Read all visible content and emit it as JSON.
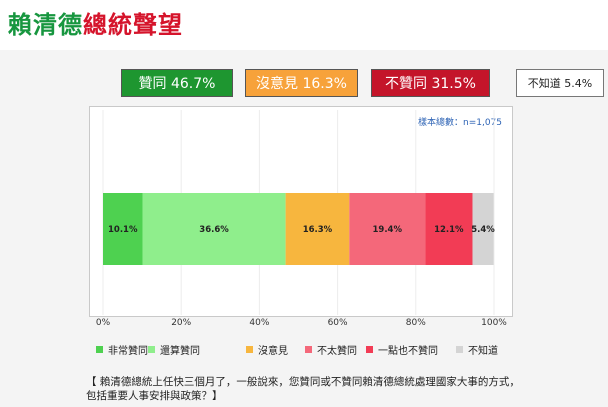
{
  "header": {
    "title_part1": "賴清德",
    "title_part2": "總統聲望"
  },
  "summary": {
    "approve": "贊同 46.7%",
    "neutral": "沒意見 16.3%",
    "disapprove": "不贊同 31.5%",
    "unknown": "不知道 5.4%"
  },
  "sample_size": "樣本總數：n=1,075",
  "question": "【 賴清德總統上任快三個月了，一般說來，您贊同或不贊同賴清德總統處理國家大事的方式，包括重要人事安排與政策？】",
  "chart_data": {
    "type": "bar",
    "orientation": "horizontal",
    "stacked": true,
    "xlim": [
      0,
      100
    ],
    "ticks": [
      "0%",
      "20%",
      "40%",
      "60%",
      "80%",
      "100%"
    ],
    "tick_values": [
      0,
      20,
      40,
      60,
      80,
      100
    ],
    "grid": true,
    "legend_position": "bottom",
    "series": [
      {
        "name": "非常贊同",
        "value": 10.1,
        "label": "10.1%",
        "color": "#4ed150"
      },
      {
        "name": "還算贊同",
        "value": 36.6,
        "label": "36.6%",
        "color": "#8fee8c"
      },
      {
        "name": "沒意見",
        "value": 16.3,
        "label": "16.3%",
        "color": "#f7b63e"
      },
      {
        "name": "不太贊同",
        "value": 19.4,
        "label": "19.4%",
        "color": "#f4687a"
      },
      {
        "name": "一點也不贊同",
        "value": 12.1,
        "label": "12.1%",
        "color": "#f23c55"
      },
      {
        "name": "不知道",
        "value": 5.4,
        "label": "5.4%",
        "color": "#d4d4d4"
      }
    ]
  }
}
